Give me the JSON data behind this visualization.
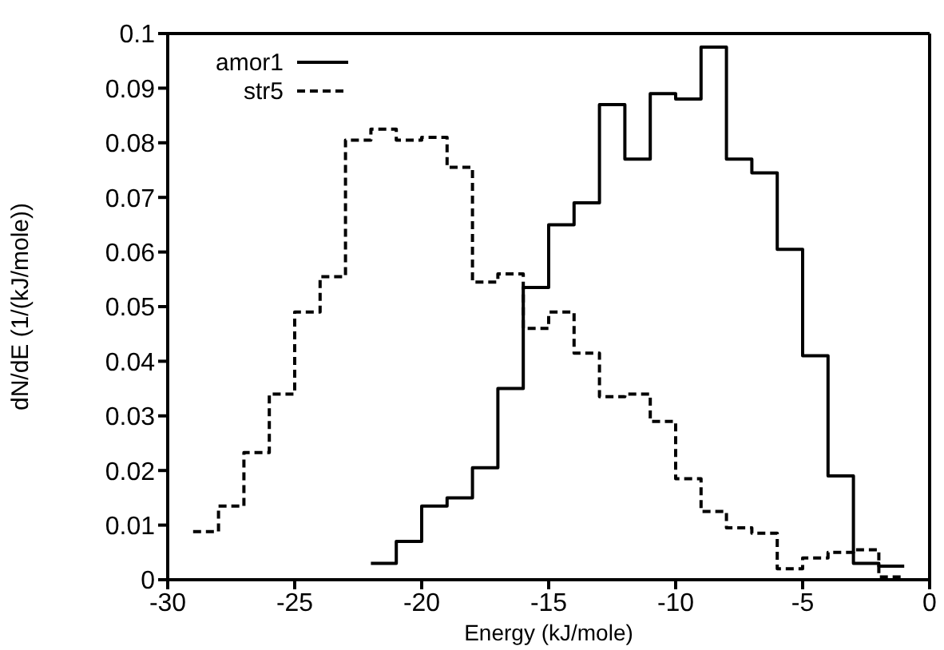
{
  "chart_data": {
    "type": "histogram",
    "xlabel": "Energy (kJ/mole)",
    "ylabel": "dN/dE (1/(kJ/mole))",
    "bins": [
      -29,
      -28,
      -27,
      -26,
      -25,
      -24,
      -23,
      -22,
      -21,
      -20,
      -19,
      -18,
      -17,
      -16,
      -15,
      -14,
      -13,
      -12,
      -11,
      -10,
      -9,
      -8,
      -7,
      -6,
      -5,
      -4,
      -3,
      -2,
      -1
    ],
    "series": [
      {
        "name": "amor1",
        "color": "#000000",
        "line_style": "solid",
        "bins": [
          -22,
          -21,
          -20,
          -19,
          -18,
          -17,
          -16,
          -15,
          -14,
          -13,
          -12,
          -11,
          -10,
          -9,
          -8,
          -7,
          -6,
          -5,
          -4,
          -3,
          -2,
          -1
        ],
        "values": [
          0.003,
          0.007,
          0.0135,
          0.015,
          0.0205,
          0.035,
          0.0535,
          0.065,
          0.069,
          0.087,
          0.077,
          0.089,
          0.088,
          0.0975,
          0.077,
          0.0745,
          0.0605,
          0.041,
          0.019,
          0.003,
          0.0025
        ]
      },
      {
        "name": "str5",
        "color": "#000000",
        "line_style": "dashed",
        "values": [
          0.0088,
          0.0135,
          0.0233,
          0.034,
          0.049,
          0.0555,
          0.0805,
          0.0825,
          0.0805,
          0.081,
          0.0755,
          0.0545,
          0.056,
          0.046,
          0.049,
          0.0415,
          0.0335,
          0.034,
          0.029,
          0.0185,
          0.0125,
          0.0095,
          0.0085,
          0.002,
          0.004,
          0.005,
          0.0055,
          0.0005
        ]
      }
    ],
    "xlim": [
      -30,
      0
    ],
    "xticks": [
      -30,
      -25,
      -20,
      -15,
      -10,
      -5,
      0
    ],
    "ylim": [
      0,
      0.1
    ],
    "yticks": [
      0,
      0.01,
      0.02,
      0.03,
      0.04,
      0.05,
      0.06,
      0.07,
      0.08,
      0.09,
      0.1
    ],
    "grid": false,
    "legend": "top left"
  }
}
